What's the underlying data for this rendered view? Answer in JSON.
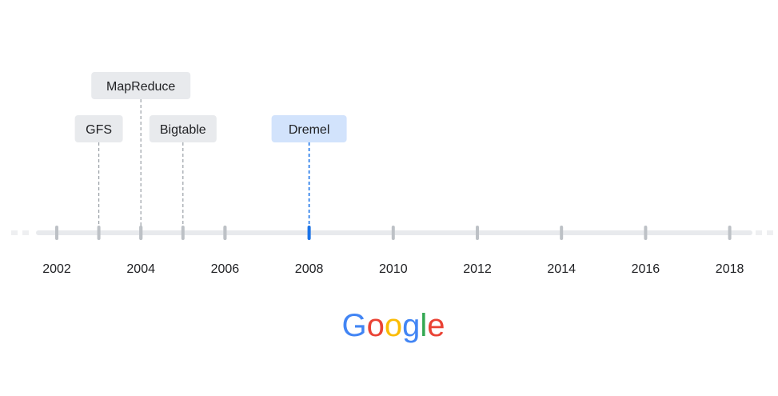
{
  "timeline": {
    "years": [
      "2002",
      "2004",
      "2006",
      "2008",
      "2010",
      "2012",
      "2014",
      "2016",
      "2018"
    ],
    "events": [
      {
        "label": "GFS",
        "year": 2003,
        "highlighted": false
      },
      {
        "label": "MapReduce",
        "year": 2004,
        "highlighted": false
      },
      {
        "label": "Bigtable",
        "year": 2005,
        "highlighted": false
      },
      {
        "label": "Dremel",
        "year": 2008,
        "highlighted": true
      }
    ],
    "extra_tick_years": [
      2006
    ],
    "colors": {
      "axis": "#e8eaed",
      "tick": "#bdc1c6",
      "label_bg": "#e8eaed",
      "label_text": "#202124",
      "leader": "#9aa0a6",
      "highlight_bg": "#d2e3fc",
      "highlight_line": "#1a73e8"
    }
  },
  "logo": {
    "text": "Google",
    "letters": [
      {
        "char": "G",
        "color": "#4285F4"
      },
      {
        "char": "o",
        "color": "#EA4335"
      },
      {
        "char": "o",
        "color": "#FBBC05"
      },
      {
        "char": "g",
        "color": "#4285F4"
      },
      {
        "char": "l",
        "color": "#34A853"
      },
      {
        "char": "e",
        "color": "#EA4335"
      }
    ]
  }
}
